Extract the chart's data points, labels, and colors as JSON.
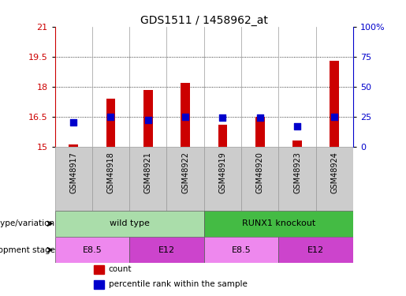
{
  "title": "GDS1511 / 1458962_at",
  "samples": [
    "GSM48917",
    "GSM48918",
    "GSM48921",
    "GSM48922",
    "GSM48919",
    "GSM48920",
    "GSM48923",
    "GSM48924"
  ],
  "count_values": [
    15.1,
    17.4,
    17.85,
    18.2,
    16.1,
    16.5,
    15.3,
    19.3
  ],
  "percentile_values": [
    20,
    25,
    22,
    25,
    24,
    24,
    17,
    25
  ],
  "ylim_left": [
    15,
    21
  ],
  "ylim_right": [
    0,
    100
  ],
  "yticks_left": [
    15,
    16.5,
    18,
    19.5,
    21
  ],
  "yticks_right": [
    0,
    25,
    50,
    75,
    100
  ],
  "ytick_labels_left": [
    "15",
    "16.5",
    "18",
    "19.5",
    "21"
  ],
  "ytick_labels_right": [
    "0",
    "25",
    "50",
    "75",
    "100%"
  ],
  "bar_color": "#cc0000",
  "dot_color": "#0000cc",
  "bar_width": 0.25,
  "dot_size": 30,
  "genotype_groups": [
    {
      "label": "wild type",
      "start": 0,
      "end": 4,
      "color": "#aaddaa"
    },
    {
      "label": "RUNX1 knockout",
      "start": 4,
      "end": 8,
      "color": "#44bb44"
    }
  ],
  "dev_stage_groups": [
    {
      "label": "E8.5",
      "start": 0,
      "end": 2,
      "color": "#ee88ee"
    },
    {
      "label": "E12",
      "start": 2,
      "end": 4,
      "color": "#cc44cc"
    },
    {
      "label": "E8.5",
      "start": 4,
      "end": 6,
      "color": "#ee88ee"
    },
    {
      "label": "E12",
      "start": 6,
      "end": 8,
      "color": "#cc44cc"
    }
  ],
  "row_labels": [
    "genotype/variation",
    "development stage"
  ],
  "legend_items": [
    {
      "label": "count",
      "color": "#cc0000"
    },
    {
      "label": "percentile rank within the sample",
      "color": "#0000cc"
    }
  ],
  "grid_lines": [
    16.5,
    18,
    19.5
  ],
  "background_color": "#ffffff",
  "plot_bg_color": "#ffffff",
  "tick_label_color_left": "#cc0000",
  "tick_label_color_right": "#0000cc",
  "sample_bg_color": "#cccccc",
  "label_row_label_color": "#000000"
}
